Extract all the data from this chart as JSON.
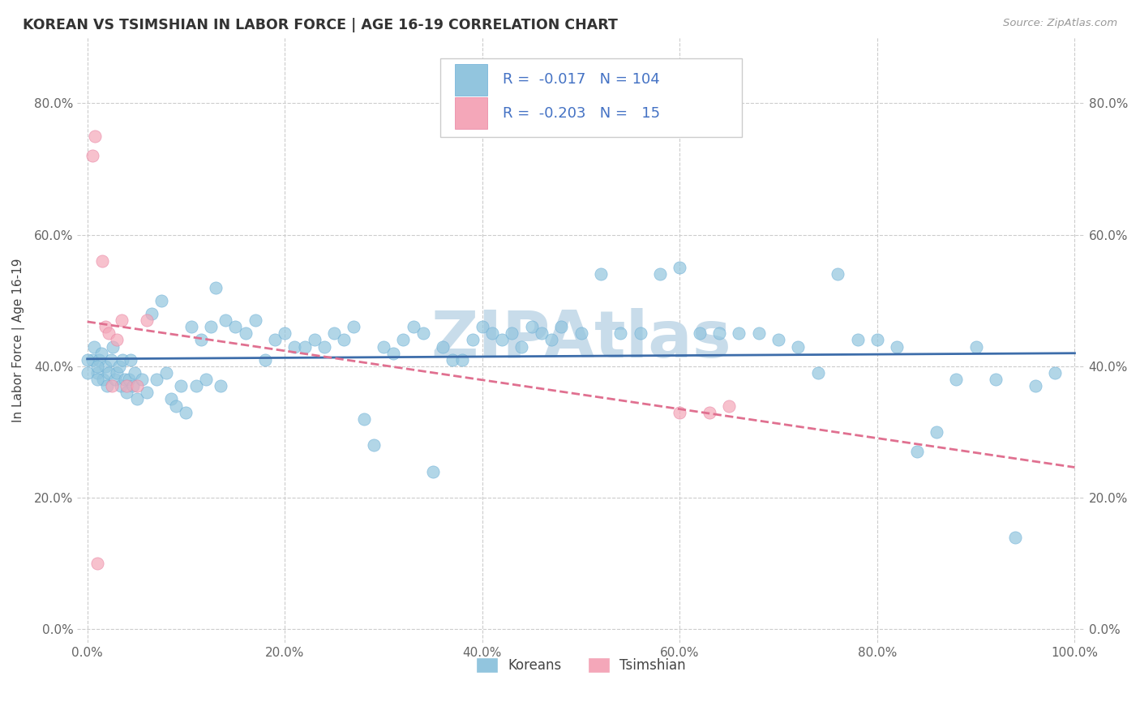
{
  "title": "KOREAN VS TSIMSHIAN IN LABOR FORCE | AGE 16-19 CORRELATION CHART",
  "source_text": "Source: ZipAtlas.com",
  "ylabel": "In Labor Force | Age 16-19",
  "xlim": [
    -0.01,
    1.01
  ],
  "ylim": [
    -0.02,
    0.9
  ],
  "x_ticks": [
    0.0,
    0.2,
    0.4,
    0.6,
    0.8,
    1.0
  ],
  "x_tick_labels": [
    "0.0%",
    "20.0%",
    "40.0%",
    "60.0%",
    "80.0%",
    "100.0%"
  ],
  "y_ticks": [
    0.0,
    0.2,
    0.4,
    0.6,
    0.8
  ],
  "y_tick_labels": [
    "0.0%",
    "20.0%",
    "40.0%",
    "60.0%",
    "80.0%"
  ],
  "korean_color": "#92c5de",
  "korean_edge": "#6aaed6",
  "tsimshian_color": "#f4a7b9",
  "tsimshian_edge": "#e87fa0",
  "korean_line_color": "#3d6daa",
  "tsimshian_line_color": "#e07090",
  "korean_R": -0.017,
  "korean_N": 104,
  "tsimshian_R": -0.203,
  "tsimshian_N": 15,
  "watermark": "ZIPAtlas",
  "watermark_color": "#c8dcea",
  "legend_color": "#4472c4",
  "korean_x": [
    0.005,
    0.007,
    0.01,
    0.012,
    0.014,
    0.016,
    0.018,
    0.02,
    0.022,
    0.024,
    0.026,
    0.028,
    0.03,
    0.032,
    0.034,
    0.036,
    0.038,
    0.04,
    0.042,
    0.044,
    0.046,
    0.048,
    0.05,
    0.055,
    0.06,
    0.065,
    0.07,
    0.075,
    0.08,
    0.085,
    0.09,
    0.095,
    0.1,
    0.105,
    0.11,
    0.115,
    0.12,
    0.125,
    0.13,
    0.135,
    0.14,
    0.15,
    0.16,
    0.17,
    0.18,
    0.19,
    0.2,
    0.21,
    0.22,
    0.23,
    0.24,
    0.25,
    0.26,
    0.27,
    0.28,
    0.29,
    0.3,
    0.31,
    0.32,
    0.33,
    0.34,
    0.35,
    0.36,
    0.37,
    0.38,
    0.39,
    0.4,
    0.41,
    0.42,
    0.43,
    0.44,
    0.45,
    0.46,
    0.47,
    0.48,
    0.5,
    0.52,
    0.54,
    0.56,
    0.58,
    0.6,
    0.62,
    0.64,
    0.66,
    0.68,
    0.7,
    0.72,
    0.74,
    0.76,
    0.78,
    0.8,
    0.82,
    0.84,
    0.86,
    0.88,
    0.9,
    0.92,
    0.94,
    0.96,
    0.98,
    0.0,
    0.0,
    0.01,
    0.01
  ],
  "korean_y": [
    0.41,
    0.43,
    0.39,
    0.41,
    0.42,
    0.38,
    0.4,
    0.37,
    0.39,
    0.41,
    0.43,
    0.38,
    0.39,
    0.4,
    0.37,
    0.41,
    0.38,
    0.36,
    0.38,
    0.41,
    0.37,
    0.39,
    0.35,
    0.38,
    0.36,
    0.48,
    0.38,
    0.5,
    0.39,
    0.35,
    0.34,
    0.37,
    0.33,
    0.46,
    0.37,
    0.44,
    0.38,
    0.46,
    0.52,
    0.37,
    0.47,
    0.46,
    0.45,
    0.47,
    0.41,
    0.44,
    0.45,
    0.43,
    0.43,
    0.44,
    0.43,
    0.45,
    0.44,
    0.46,
    0.32,
    0.28,
    0.43,
    0.42,
    0.44,
    0.46,
    0.45,
    0.24,
    0.43,
    0.41,
    0.41,
    0.44,
    0.46,
    0.45,
    0.44,
    0.45,
    0.43,
    0.46,
    0.45,
    0.44,
    0.46,
    0.45,
    0.54,
    0.45,
    0.45,
    0.54,
    0.55,
    0.45,
    0.45,
    0.45,
    0.45,
    0.44,
    0.43,
    0.39,
    0.54,
    0.44,
    0.44,
    0.43,
    0.27,
    0.3,
    0.38,
    0.43,
    0.38,
    0.14,
    0.37,
    0.39,
    0.41,
    0.39,
    0.38,
    0.4
  ],
  "tsimshian_x": [
    0.005,
    0.008,
    0.01,
    0.015,
    0.018,
    0.022,
    0.025,
    0.03,
    0.035,
    0.04,
    0.05,
    0.06,
    0.6,
    0.63,
    0.65
  ],
  "tsimshian_y": [
    0.72,
    0.75,
    0.1,
    0.56,
    0.46,
    0.45,
    0.37,
    0.44,
    0.47,
    0.37,
    0.37,
    0.47,
    0.33,
    0.33,
    0.34
  ]
}
